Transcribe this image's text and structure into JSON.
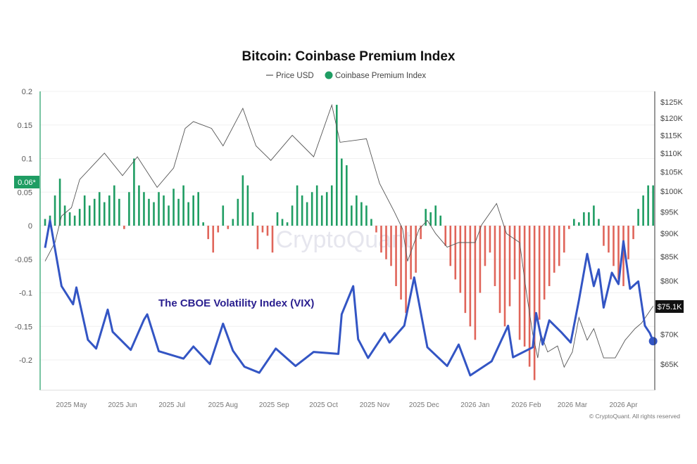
{
  "chart_data": {
    "type": "bar+line",
    "title": "Bitcoin: Coinbase Premium Index",
    "legend": [
      {
        "name": "Price USD",
        "marker": "line",
        "color": "#555555"
      },
      {
        "name": "Coinbase Premium Index",
        "marker": "dot",
        "color": "#1f9d63"
      }
    ],
    "legend_placement": "top-center",
    "grid": true,
    "xlim": [
      "2025-04-12",
      "2026-04-20"
    ],
    "x_ticks": [
      {
        "date": "2025-05-01",
        "label": "2025 May"
      },
      {
        "date": "2025-06-01",
        "label": "2025 Jun"
      },
      {
        "date": "2025-07-01",
        "label": "2025 Jul"
      },
      {
        "date": "2025-08-01",
        "label": "2025 Aug"
      },
      {
        "date": "2025-09-01",
        "label": "2025 Sep"
      },
      {
        "date": "2025-10-01",
        "label": "2025 Oct"
      },
      {
        "date": "2025-11-01",
        "label": "2025 Nov"
      },
      {
        "date": "2025-12-01",
        "label": "2025 Dec"
      },
      {
        "date": "2026-01-01",
        "label": "2026 Jan"
      },
      {
        "date": "2026-02-01",
        "label": "2026 Feb"
      },
      {
        "date": "2026-03-01",
        "label": "2026 Mar"
      },
      {
        "date": "2026-04-01",
        "label": "2026 Apr"
      }
    ],
    "left_axis": {
      "ylim": [
        -0.245,
        0.2
      ],
      "ticks": [
        0.2,
        0.15,
        0.1,
        0.05,
        0,
        -0.05,
        -0.1,
        -0.15,
        -0.2
      ],
      "tick_labels": [
        "0.2",
        "0.15",
        "0.1",
        "0.05",
        "0",
        "-0.05",
        "-0.1",
        "-0.15",
        "-0.2"
      ],
      "current_badge": "0.06*",
      "badge_value": 0.06
    },
    "right_axis": {
      "scale": "log",
      "ylim": [
        60.9,
        128.3
      ],
      "ticks": [
        125,
        120,
        115,
        110,
        105,
        100,
        95,
        90,
        85,
        80,
        70,
        65
      ],
      "tick_labels": [
        "$125K",
        "$120K",
        "$115K",
        "$110K",
        "$105K",
        "$100K",
        "$95K",
        "$90K",
        "$85K",
        "$80K",
        "$70K",
        "$65K"
      ],
      "current_badge": "$75.1K",
      "badge_value": 75.1
    },
    "premium": {
      "name": "Coinbase Premium Index",
      "positive_color": "#1f9d63",
      "negative_color": "#e0655a",
      "dates": [
        "2025-04-15",
        "2025-04-18",
        "2025-04-21",
        "2025-04-24",
        "2025-04-27",
        "2025-04-30",
        "2025-05-03",
        "2025-05-06",
        "2025-05-09",
        "2025-05-12",
        "2025-05-15",
        "2025-05-18",
        "2025-05-21",
        "2025-05-24",
        "2025-05-27",
        "2025-05-30",
        "2025-06-02",
        "2025-06-05",
        "2025-06-08",
        "2025-06-11",
        "2025-06-14",
        "2025-06-17",
        "2025-06-20",
        "2025-06-23",
        "2025-06-26",
        "2025-06-29",
        "2025-07-02",
        "2025-07-05",
        "2025-07-08",
        "2025-07-11",
        "2025-07-14",
        "2025-07-17",
        "2025-07-20",
        "2025-07-23",
        "2025-07-26",
        "2025-07-29",
        "2025-08-01",
        "2025-08-04",
        "2025-08-07",
        "2025-08-10",
        "2025-08-13",
        "2025-08-16",
        "2025-08-19",
        "2025-08-22",
        "2025-08-25",
        "2025-08-28",
        "2025-08-31",
        "2025-09-03",
        "2025-09-06",
        "2025-09-09",
        "2025-09-12",
        "2025-09-15",
        "2025-09-18",
        "2025-09-21",
        "2025-09-24",
        "2025-09-27",
        "2025-09-30",
        "2025-10-03",
        "2025-10-06",
        "2025-10-09",
        "2025-10-12",
        "2025-10-15",
        "2025-10-18",
        "2025-10-21",
        "2025-10-24",
        "2025-10-27",
        "2025-10-30",
        "2025-11-02",
        "2025-11-05",
        "2025-11-08",
        "2025-11-11",
        "2025-11-14",
        "2025-11-17",
        "2025-11-20",
        "2025-11-23",
        "2025-11-26",
        "2025-11-29",
        "2025-12-02",
        "2025-12-05",
        "2025-12-08",
        "2025-12-11",
        "2025-12-14",
        "2025-12-17",
        "2025-12-20",
        "2025-12-23",
        "2025-12-26",
        "2025-12-29",
        "2026-01-01",
        "2026-01-04",
        "2026-01-07",
        "2026-01-10",
        "2026-01-13",
        "2026-01-16",
        "2026-01-19",
        "2026-01-22",
        "2026-01-25",
        "2026-01-28",
        "2026-01-31",
        "2026-02-03",
        "2026-02-06",
        "2026-02-09",
        "2026-02-12",
        "2026-02-15",
        "2026-02-18",
        "2026-02-21",
        "2026-02-24",
        "2026-02-27",
        "2026-03-02",
        "2026-03-05",
        "2026-03-08",
        "2026-03-11",
        "2026-03-14",
        "2026-03-17",
        "2026-03-20",
        "2026-03-23",
        "2026-03-26",
        "2026-03-29",
        "2026-04-01",
        "2026-04-04",
        "2026-04-07",
        "2026-04-10",
        "2026-04-13",
        "2026-04-16",
        "2026-04-19"
      ],
      "values": [
        0.01,
        0.015,
        0.045,
        0.07,
        0.03,
        0.02,
        0.015,
        0.025,
        0.045,
        0.03,
        0.04,
        0.05,
        0.035,
        0.045,
        0.06,
        0.04,
        -0.005,
        0.05,
        0.1,
        0.06,
        0.05,
        0.04,
        0.035,
        0.05,
        0.045,
        0.03,
        0.055,
        0.04,
        0.06,
        0.035,
        0.045,
        0.05,
        0.005,
        -0.02,
        -0.04,
        -0.01,
        0.03,
        -0.005,
        0.01,
        0.04,
        0.075,
        0.06,
        0.02,
        -0.035,
        -0.01,
        -0.015,
        -0.04,
        0.02,
        0.01,
        0.005,
        0.03,
        0.06,
        0.045,
        0.035,
        0.05,
        0.06,
        0.045,
        0.05,
        0.06,
        0.18,
        0.1,
        0.09,
        0.03,
        0.045,
        0.035,
        0.03,
        0.01,
        -0.01,
        -0.04,
        -0.05,
        -0.06,
        -0.09,
        -0.11,
        -0.13,
        -0.08,
        -0.07,
        -0.02,
        0.025,
        0.02,
        0.03,
        0.015,
        -0.03,
        -0.06,
        -0.08,
        -0.1,
        -0.13,
        -0.15,
        -0.17,
        -0.1,
        -0.06,
        -0.04,
        -0.09,
        -0.13,
        -0.15,
        -0.12,
        -0.08,
        -0.17,
        -0.18,
        -0.21,
        -0.23,
        -0.14,
        -0.11,
        -0.09,
        -0.07,
        -0.06,
        -0.04,
        -0.005,
        0.01,
        0.005,
        0.02,
        0.02,
        0.03,
        0.01,
        -0.03,
        -0.04,
        -0.06,
        -0.08,
        -0.09,
        -0.05,
        -0.02,
        0.025,
        0.045,
        0.06,
        0.06
      ]
    },
    "price": {
      "name": "Price USD",
      "unit": "K USD",
      "color": "#555555",
      "dates": [
        "2025-04-15",
        "2025-04-21",
        "2025-04-25",
        "2025-05-01",
        "2025-05-06",
        "2025-05-21",
        "2025-06-01",
        "2025-06-10",
        "2025-06-22",
        "2025-07-02",
        "2025-07-09",
        "2025-07-14",
        "2025-07-25",
        "2025-08-01",
        "2025-08-13",
        "2025-08-21",
        "2025-08-30",
        "2025-09-12",
        "2025-09-25",
        "2025-10-06",
        "2025-10-11",
        "2025-10-27",
        "2025-11-04",
        "2025-11-13",
        "2025-11-18",
        "2025-11-21",
        "2025-11-28",
        "2025-12-03",
        "2025-12-08",
        "2025-12-15",
        "2025-12-22",
        "2026-01-01",
        "2026-01-05",
        "2026-01-14",
        "2026-01-20",
        "2026-01-28",
        "2026-02-01",
        "2026-02-05",
        "2026-02-08",
        "2026-02-10",
        "2026-02-14",
        "2026-02-20",
        "2026-02-24",
        "2026-03-01",
        "2026-03-05",
        "2026-03-10",
        "2026-03-14",
        "2026-03-20",
        "2026-03-27",
        "2026-04-02",
        "2026-04-08",
        "2026-04-12",
        "2026-04-19"
      ],
      "values": [
        84,
        88,
        94,
        96,
        103,
        110,
        104,
        109,
        101,
        106,
        117,
        119,
        117,
        112,
        123,
        112,
        108,
        115,
        109,
        124,
        113,
        114,
        102,
        95,
        91,
        84,
        91,
        93,
        90,
        87,
        88,
        88,
        92,
        97,
        90,
        88,
        78,
        70,
        66,
        70,
        67,
        68,
        64.5,
        67,
        73,
        69,
        71,
        66,
        66,
        69,
        71,
        72,
        75.1
      ]
    },
    "vix_overlay": {
      "label": "The CBOE Volatility Index (VIX)",
      "color": "#3355c4",
      "plotted_on": "left_axis",
      "dates": [
        "2025-04-15",
        "2025-04-18",
        "2025-04-25",
        "2025-05-02",
        "2025-05-04",
        "2025-05-11",
        "2025-05-16",
        "2025-05-23",
        "2025-05-26",
        "2025-06-06",
        "2025-06-14",
        "2025-06-16",
        "2025-06-23",
        "2025-07-08",
        "2025-07-14",
        "2025-07-24",
        "2025-08-01",
        "2025-08-07",
        "2025-08-14",
        "2025-08-23",
        "2025-09-02",
        "2025-09-14",
        "2025-09-25",
        "2025-10-10",
        "2025-10-12",
        "2025-10-19",
        "2025-10-22",
        "2025-10-28",
        "2025-11-07",
        "2025-11-10",
        "2025-11-19",
        "2025-11-25",
        "2025-12-03",
        "2025-12-15",
        "2025-12-22",
        "2025-12-29",
        "2026-01-11",
        "2026-01-21",
        "2026-01-24",
        "2026-02-05",
        "2026-02-07",
        "2026-02-11",
        "2026-02-15",
        "2026-02-22",
        "2026-02-28",
        "2026-03-05",
        "2026-03-10",
        "2026-03-14",
        "2026-03-17",
        "2026-03-20",
        "2026-03-25",
        "2026-03-29",
        "2026-04-01",
        "2026-04-05",
        "2026-04-10",
        "2026-04-14",
        "2026-04-17",
        "2026-04-19"
      ],
      "values": [
        -0.033,
        0.008,
        -0.09,
        -0.117,
        -0.092,
        -0.17,
        -0.183,
        -0.125,
        -0.158,
        -0.185,
        -0.14,
        -0.132,
        -0.187,
        -0.198,
        -0.18,
        -0.206,
        -0.146,
        -0.186,
        -0.21,
        -0.219,
        -0.183,
        -0.209,
        -0.188,
        -0.191,
        -0.132,
        -0.09,
        -0.169,
        -0.197,
        -0.16,
        -0.174,
        -0.149,
        -0.077,
        -0.181,
        -0.209,
        -0.177,
        -0.223,
        -0.202,
        -0.149,
        -0.196,
        -0.181,
        -0.13,
        -0.177,
        -0.141,
        -0.158,
        -0.174,
        -0.111,
        -0.042,
        -0.09,
        -0.065,
        -0.122,
        -0.07,
        -0.087,
        -0.023,
        -0.094,
        -0.083,
        -0.149,
        -0.16,
        -0.172
      ]
    },
    "watermark": "CryptoQuant",
    "copyright": "© CryptoQuant. All rights reserved"
  }
}
